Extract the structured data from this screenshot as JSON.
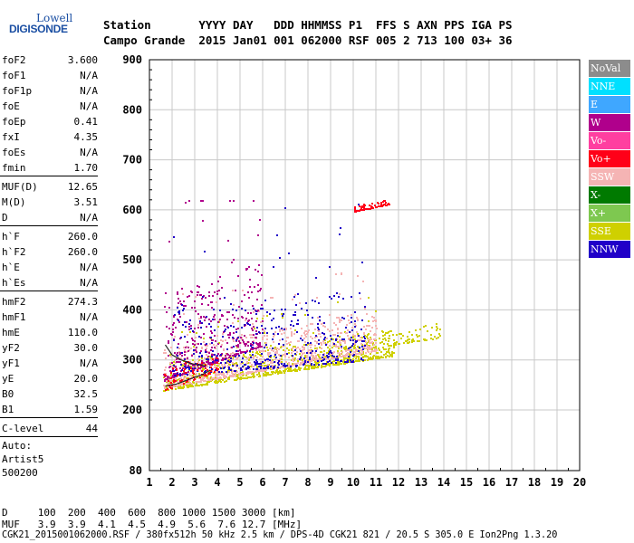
{
  "logo": {
    "top": "Lowell",
    "main": "DIGISONDE"
  },
  "header": {
    "line1": "Station       YYYY DAY   DDD HHMMSS P1  FFS S AXN PPS IGA PS",
    "line2": "Campo Grande  2015 Jan01 001 062000 RSF 005 2 713 100 03+ 36"
  },
  "params": [
    {
      "label": "foF2",
      "value": "3.600"
    },
    {
      "label": "foF1",
      "value": "N/A"
    },
    {
      "label": "foF1p",
      "value": "N/A"
    },
    {
      "label": "foE",
      "value": "N/A"
    },
    {
      "label": "foEp",
      "value": "0.41"
    },
    {
      "label": "fxI",
      "value": "4.35"
    },
    {
      "label": "foEs",
      "value": "N/A"
    },
    {
      "label": "fmin",
      "value": "1.70"
    },
    {
      "label": "MUF(D)",
      "value": "12.65"
    },
    {
      "label": "M(D)",
      "value": "3.51"
    },
    {
      "label": "D",
      "value": "N/A"
    },
    {
      "label": "h`F",
      "value": "260.0"
    },
    {
      "label": "h`F2",
      "value": "260.0"
    },
    {
      "label": "h`E",
      "value": "N/A"
    },
    {
      "label": "h`Es",
      "value": "N/A"
    },
    {
      "label": "hmF2",
      "value": "274.3"
    },
    {
      "label": "hmF1",
      "value": "N/A"
    },
    {
      "label": "hmE",
      "value": "110.0"
    },
    {
      "label": "yF2",
      "value": "30.0"
    },
    {
      "label": "yF1",
      "value": "N/A"
    },
    {
      "label": "yE",
      "value": "20.0"
    },
    {
      "label": "B0",
      "value": "32.5"
    },
    {
      "label": "B1",
      "value": "1.59"
    },
    {
      "label": "C-level",
      "value": "44"
    }
  ],
  "auto": {
    "line1": "Auto:",
    "line2": "Artist5",
    "line3": "500200"
  },
  "legend": [
    {
      "label": "NoVal",
      "color": "#8c8c8c"
    },
    {
      "label": "NNE",
      "color": "#00e0ff"
    },
    {
      "label": "E",
      "color": "#3fa7ff"
    },
    {
      "label": "W",
      "color": "#b0008c"
    },
    {
      "label": "Vo-",
      "color": "#ff3fa0"
    },
    {
      "label": "Vo+",
      "color": "#ff0018"
    },
    {
      "label": "SSW",
      "color": "#f5b4b4"
    },
    {
      "label": "X-",
      "color": "#007a00"
    },
    {
      "label": "X+",
      "color": "#7ec850"
    },
    {
      "label": "SSE",
      "color": "#cfd000"
    },
    {
      "label": "NNW",
      "color": "#2000c8"
    }
  ],
  "footer": {
    "line1": "D     100  200  400  600  800 1000 1500 3000 [km]",
    "line2": "MUF   3.9  3.9  4.1  4.5  4.9  5.6  7.6 12.7 [MHz]",
    "line3": "CGK21_2015001062000.RSF / 380fx512h 50 kHz 2.5 km / DPS-4D CGK21 821 / 20.5 S 305.0 E Ion2Png 1.3.20"
  },
  "chart_data": {
    "type": "scatter",
    "title": "",
    "xlabel": "",
    "ylabel": "",
    "xlim": [
      1,
      20
    ],
    "ylim": [
      80,
      900
    ],
    "xticks": [
      1,
      2,
      3,
      4,
      5,
      6,
      7,
      8,
      9,
      10,
      11,
      12,
      13,
      14,
      15,
      16,
      17,
      18,
      19,
      20
    ],
    "yticks": [
      80,
      200,
      300,
      400,
      500,
      600,
      700,
      800,
      900
    ],
    "grid": true,
    "legend_position": "right",
    "clusters": [
      {
        "series": "SSE",
        "f_range": [
          1.6,
          11.8
        ],
        "h_low_start": 240,
        "h_low_end": 310,
        "h_spread": 55,
        "density": "high"
      },
      {
        "series": "SSW",
        "f_range": [
          1.6,
          11.0
        ],
        "h_low_start": 245,
        "h_low_end": 320,
        "h_spread": 80,
        "density": "high"
      },
      {
        "series": "W",
        "f_range": [
          1.6,
          6.0
        ],
        "h_low_start": 260,
        "h_low_end": 330,
        "h_spread": 170,
        "density": "medium"
      },
      {
        "series": "NNW",
        "f_range": [
          2.0,
          10.5
        ],
        "h_low_start": 270,
        "h_low_end": 300,
        "h_spread": 140,
        "density": "medium"
      },
      {
        "series": "Vo+",
        "f_range": [
          1.6,
          4.0
        ],
        "h_low_start": 240,
        "h_low_end": 280,
        "h_spread": 40,
        "density": "low"
      },
      {
        "series": "SSE",
        "f_range": [
          11.5,
          13.8
        ],
        "h_low_start": 330,
        "h_low_end": 345,
        "h_spread": 30,
        "density": "low"
      },
      {
        "series": "Vo+",
        "f_range": [
          10.0,
          11.6
        ],
        "h_low_start": 598,
        "h_low_end": 612,
        "h_spread": 10,
        "density": "low"
      }
    ],
    "trace_curves": [
      {
        "name": "o-trace",
        "points": [
          [
            1.7,
            248
          ],
          [
            2.2,
            252
          ],
          [
            2.8,
            262
          ],
          [
            3.4,
            272
          ],
          [
            3.7,
            280
          ]
        ]
      },
      {
        "name": "x-trace",
        "points": [
          [
            1.7,
            330
          ],
          [
            2.0,
            310
          ],
          [
            2.4,
            300
          ],
          [
            2.9,
            292
          ],
          [
            3.5,
            288
          ]
        ]
      }
    ]
  }
}
